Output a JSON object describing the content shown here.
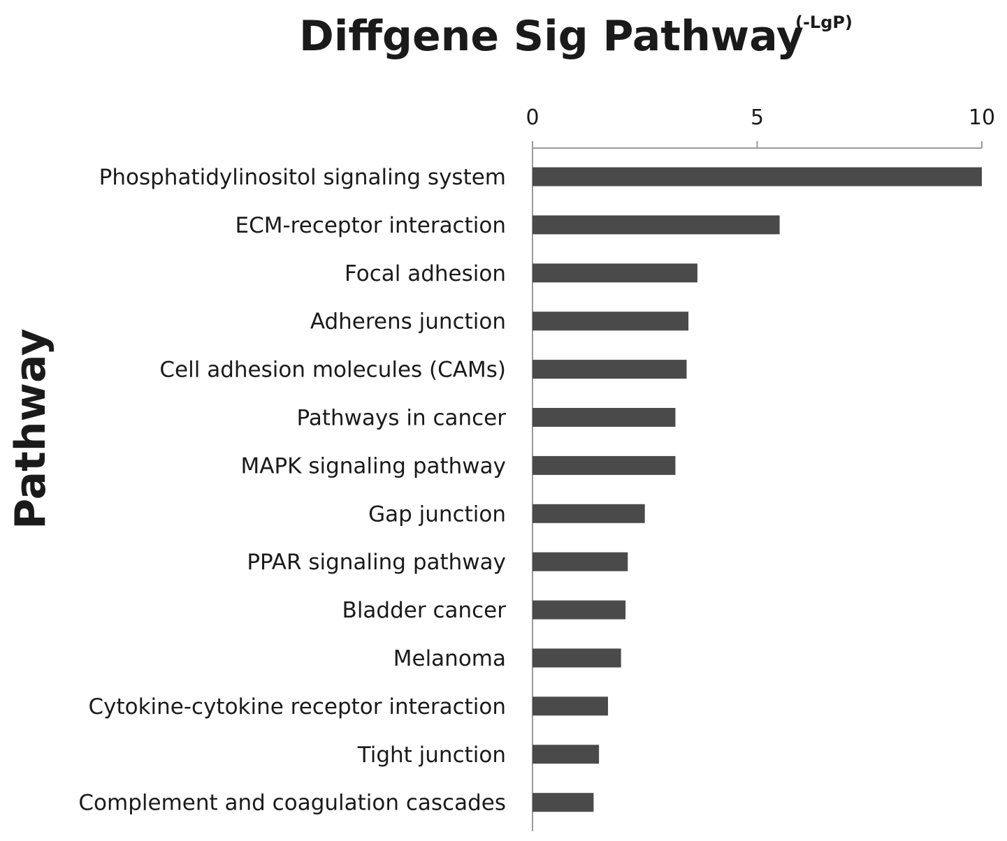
{
  "colors": {
    "bar": "#4a4a4a",
    "axis": "#9a9a9a",
    "text": "#1a1a1a",
    "background": "#ffffff"
  },
  "chart_data": {
    "type": "bar",
    "orientation": "horizontal",
    "title": "Diffgene Sig Pathway",
    "title_unit": "(-LgP)",
    "ylabel": "Pathway",
    "xlabel": "",
    "x_axis_position": "top",
    "xlim": [
      0,
      10
    ],
    "xticks": [
      0,
      5,
      10
    ],
    "grid": false,
    "legend": "none",
    "categories": [
      "Phosphatidylinositol signaling system",
      "ECM-receptor interaction",
      "Focal adhesion",
      "Adherens junction",
      "Cell adhesion molecules (CAMs)",
      "Pathways in cancer",
      "MAPK signaling pathway",
      "Gap junction",
      "PPAR signaling pathway",
      "Bladder cancer",
      "Melanoma",
      "Cytokine-cytokine receptor interaction",
      "Tight junction",
      "Complement and coagulation cascades"
    ],
    "values": [
      10.0,
      5.5,
      3.67,
      3.47,
      3.43,
      3.18,
      3.18,
      2.5,
      2.12,
      2.07,
      1.97,
      1.68,
      1.48,
      1.36
    ]
  }
}
